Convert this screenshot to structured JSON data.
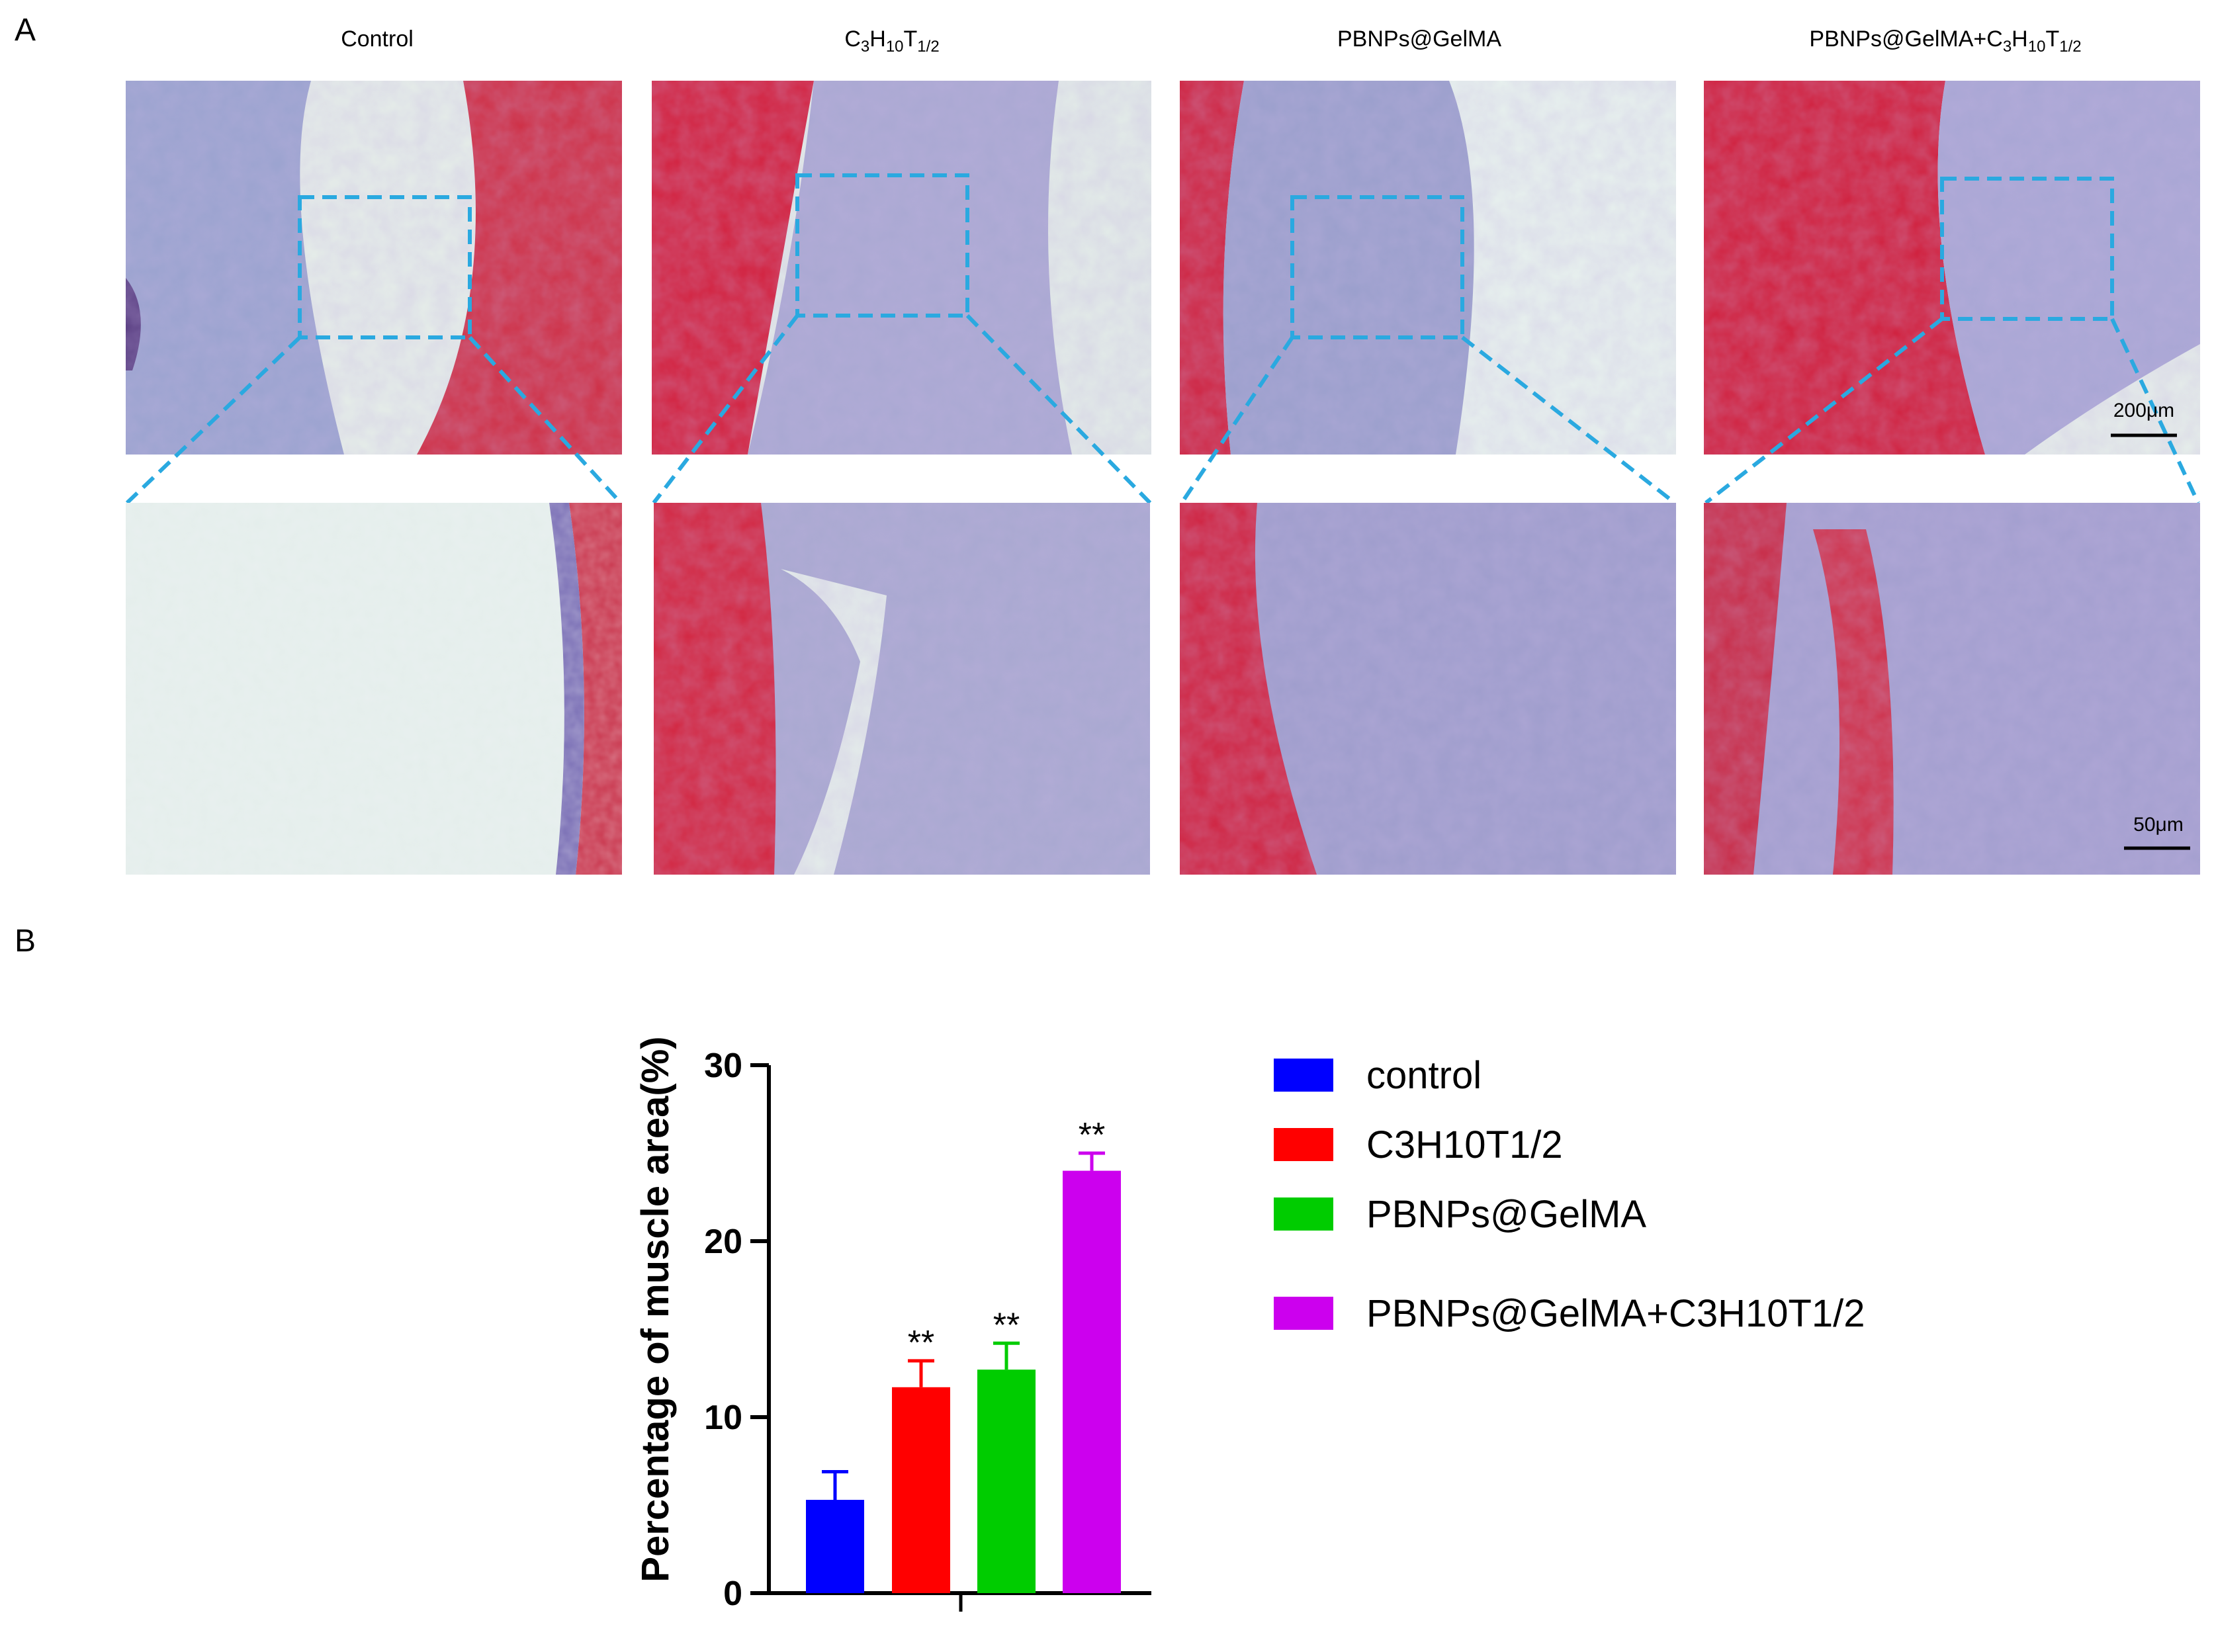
{
  "panel_a": {
    "letter": "A",
    "groups": [
      {
        "title_main": "Control",
        "title_sub_parts": []
      },
      {
        "title_main": "C",
        "title_sub_parts": [
          [
            "3",
            "H"
          ],
          [
            "10",
            "T"
          ],
          [
            "1/2",
            ""
          ]
        ]
      },
      {
        "title_main": "PBNPs@GelMA",
        "title_sub_parts": []
      },
      {
        "title_main": "PBNPs@GelMA+C",
        "title_sub_parts": [
          [
            "3",
            "H"
          ],
          [
            "10",
            "T"
          ],
          [
            "1/2",
            ""
          ]
        ]
      }
    ],
    "scale_bar_top": "200μm",
    "scale_bar_bottom": "50μm",
    "colors": {
      "muscle": "#d0213f",
      "collagen": "#7b86c8",
      "background": "#e9f3ef",
      "box": "#2aa9e0"
    }
  },
  "panel_b": {
    "letter": "B"
  },
  "chart_data": {
    "type": "bar",
    "categories": [
      "control",
      "C3H10T1/2",
      "PBNPs@GelMA",
      "PBNPs@GelMA+C3H10T1/2"
    ],
    "values": [
      5.3,
      11.7,
      12.7,
      24.0
    ],
    "errors": [
      1.6,
      1.5,
      1.5,
      1.0
    ],
    "significance": [
      "",
      "**",
      "**",
      "**"
    ],
    "colors": [
      "#0000ff",
      "#ff0000",
      "#00cc00",
      "#cc00ee"
    ],
    "title": "",
    "xlabel": "",
    "ylabel": "Percentage of muscle area(%)",
    "ylim": [
      0,
      30
    ],
    "yticks": [
      0,
      10,
      20,
      30
    ],
    "legend": [
      "control",
      "C3H10T1/2",
      "PBNPs@GelMA",
      "PBNPs@GelMA+C3H10T1/2"
    ],
    "legend_position": "right",
    "grid": false
  }
}
